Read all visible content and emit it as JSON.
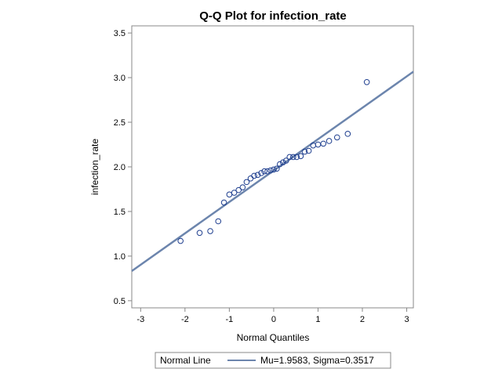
{
  "chart_data": {
    "type": "scatter",
    "title": "Q-Q Plot for infection_rate",
    "xlabel": "Normal Quantiles",
    "ylabel": "infection_rate",
    "xlim": [
      -3.2,
      3.15
    ],
    "ylim": [
      0.42,
      3.58
    ],
    "xticks": [
      -3,
      -2,
      -1,
      0,
      1,
      2,
      3
    ],
    "xtick_labels": [
      "-3",
      "-2",
      "-1",
      "0",
      "1",
      "2",
      "3"
    ],
    "yticks": [
      0.5,
      1.0,
      1.5,
      2.0,
      2.5,
      3.0,
      3.5
    ],
    "ytick_labels": [
      "0.5",
      "1.0",
      "1.5",
      "2.0",
      "2.5",
      "3.0",
      "3.5"
    ],
    "grid": false,
    "legend_position": "bottom",
    "legend_title": "Normal Line",
    "points": [
      {
        "x": -2.1,
        "y": 1.17
      },
      {
        "x": -1.67,
        "y": 1.26
      },
      {
        "x": -1.43,
        "y": 1.28
      },
      {
        "x": -1.25,
        "y": 1.39
      },
      {
        "x": -1.12,
        "y": 1.6
      },
      {
        "x": -1.0,
        "y": 1.69
      },
      {
        "x": -0.89,
        "y": 1.71
      },
      {
        "x": -0.79,
        "y": 1.74
      },
      {
        "x": -0.7,
        "y": 1.77
      },
      {
        "x": -0.61,
        "y": 1.83
      },
      {
        "x": -0.52,
        "y": 1.87
      },
      {
        "x": -0.44,
        "y": 1.9
      },
      {
        "x": -0.36,
        "y": 1.91
      },
      {
        "x": -0.28,
        "y": 1.93
      },
      {
        "x": -0.21,
        "y": 1.95
      },
      {
        "x": -0.14,
        "y": 1.95
      },
      {
        "x": -0.07,
        "y": 1.96
      },
      {
        "x": 0.0,
        "y": 1.97
      },
      {
        "x": 0.07,
        "y": 1.98
      },
      {
        "x": 0.14,
        "y": 2.03
      },
      {
        "x": 0.21,
        "y": 2.05
      },
      {
        "x": 0.28,
        "y": 2.07
      },
      {
        "x": 0.36,
        "y": 2.11
      },
      {
        "x": 0.44,
        "y": 2.11
      },
      {
        "x": 0.52,
        "y": 2.11
      },
      {
        "x": 0.61,
        "y": 2.12
      },
      {
        "x": 0.7,
        "y": 2.17
      },
      {
        "x": 0.79,
        "y": 2.18
      },
      {
        "x": 0.89,
        "y": 2.24
      },
      {
        "x": 1.0,
        "y": 2.25
      },
      {
        "x": 1.12,
        "y": 2.26
      },
      {
        "x": 1.25,
        "y": 2.29
      },
      {
        "x": 1.43,
        "y": 2.33
      },
      {
        "x": 1.67,
        "y": 2.37
      },
      {
        "x": 2.1,
        "y": 2.95
      }
    ],
    "reference_line": {
      "name": "Mu=1.9583, Sigma=0.3517",
      "mu": 1.9583,
      "sigma": 0.3517
    },
    "colors": {
      "marker": "#1f3f8f",
      "line": "#6c85ad",
      "frame": "#888888"
    }
  }
}
